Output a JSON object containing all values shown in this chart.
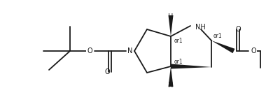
{
  "background": "#ffffff",
  "line_color": "#1a1a1a",
  "line_width": 1.3,
  "figsize": [
    3.9,
    1.46
  ],
  "dpi": 100,
  "xlim": [
    0,
    390
  ],
  "ylim": [
    0,
    146
  ]
}
